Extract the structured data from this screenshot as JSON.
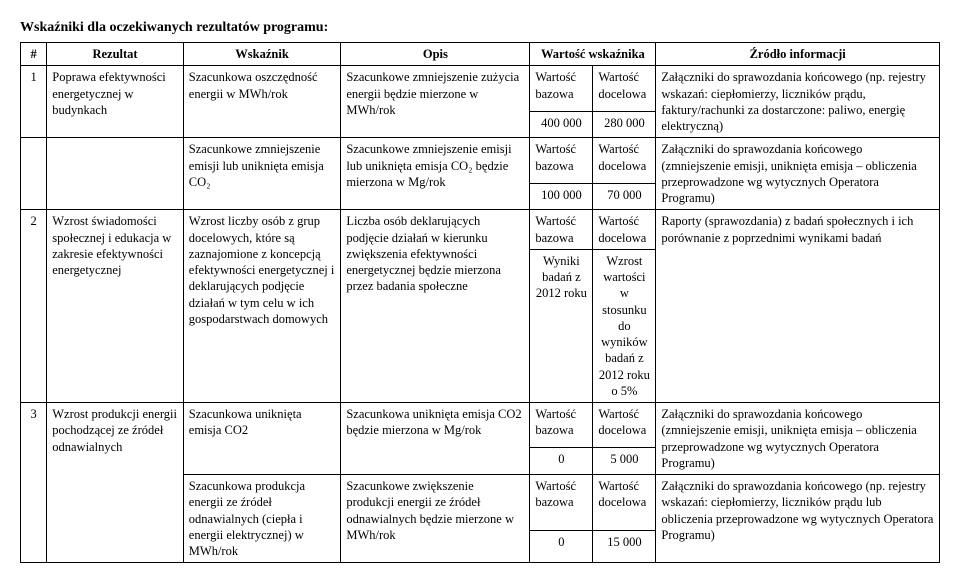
{
  "title": "Wskaźniki dla oczekiwanych rezultatów programu:",
  "headers": {
    "num": "#",
    "result": "Rezultat",
    "indicator": "Wskaźnik",
    "description": "Opis",
    "value": "Wartość wskaźnika",
    "source": "Źródło informacji"
  },
  "labels": {
    "base": "Wartość bazowa",
    "target": "Wartość docelowa"
  },
  "rows": {
    "r1": {
      "num": "1",
      "result": "Poprawa efektywności energetycznej w budynkach",
      "indicator": "Szacunkowa oszczędność energii w MWh/rok",
      "description": "Szacunkowe zmniejszenie zużycia energii będzie mierzone w MWh/rok",
      "base_val": "400 000",
      "target_val": "280 000",
      "source": "Załączniki do sprawozdania końcowego (np. rejestry wskazań: ciepłomierzy, liczników prądu, faktury/rachunki za dostarczone: paliwo, energię elektryczną)"
    },
    "r2": {
      "indicator": "Szacunkowe zmniejszenie emisji lub uniknięta emisja CO₂",
      "description": "Szacunkowe zmniejszenie emisji lub uniknięta emisja CO₂ będzie mierzona w Mg/rok",
      "base_val": "100 000",
      "target_val": "70 000",
      "source": "Załączniki do sprawozdania końcowego (zmniejszenie emisji, uniknięta emisja – obliczenia przeprowadzone wg wytycznych Operatora Programu)"
    },
    "r3": {
      "num": "2",
      "result": "Wzrost świadomości społecznej i edukacja w zakresie efektywności energetycznej",
      "indicator": "Wzrost liczby osób z grup docelowych, które są zaznajomione z koncepcją efektywności energetycznej i deklarujących podjęcie działań w tym celu w ich gospodarstwach domowych",
      "description": "Liczba osób deklarujących podjęcie działań w kierunku zwiększenia efektywności energetycznej będzie mierzona przez badania społeczne",
      "base_val": "Wyniki badań z 2012 roku",
      "target_val": "Wzrost wartości w stosunku do wyników badań z 2012 roku o 5%",
      "source": "Raporty (sprawozdania) z badań społecznych i ich porównanie z poprzednimi wynikami badań"
    },
    "r4": {
      "num": "3",
      "result": "Wzrost produkcji energii pochodzącej ze źródeł odnawialnych",
      "indicator": "Szacunkowa uniknięta emisja CO2",
      "description": "Szacunkowa uniknięta emisja CO2 będzie mierzona w Mg/rok",
      "base_val": "0",
      "target_val": "5 000",
      "source": "Załączniki do sprawozdania końcowego (zmniejszenie emisji, uniknięta emisja – obliczenia przeprowadzone wg wytycznych Operatora Programu)"
    },
    "r5": {
      "indicator": "Szacunkowa produkcja energii ze źródeł odnawialnych (ciepła i energii elektrycznej) w MWh/rok",
      "description": "Szacunkowe zwiększenie produkcji energii ze źródeł odnawialnych będzie mierzone w MWh/rok",
      "base_val": "0",
      "target_val": "15 000",
      "source": "Załączniki do sprawozdania końcowego (np. rejestry wskazań: ciepłomierzy, liczników prądu lub obliczenia przeprowadzone wg wytycznych Operatora Programu)"
    }
  }
}
